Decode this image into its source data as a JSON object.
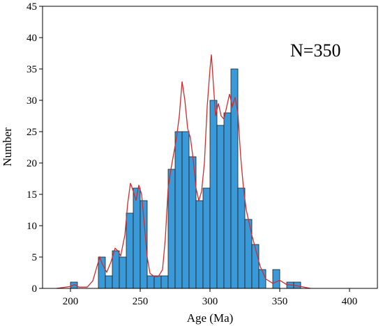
{
  "chart_data": {
    "type": "bar",
    "title": "",
    "xlabel": "Age (Ma)",
    "ylabel": "Number",
    "annotation": "N=350",
    "xlim": [
      180,
      420
    ],
    "ylim": [
      0,
      45
    ],
    "xticks": [
      200,
      250,
      300,
      350,
      400
    ],
    "yticks": [
      0,
      5,
      10,
      15,
      20,
      25,
      30,
      35,
      40,
      45
    ],
    "bin_width": 5,
    "bar_color": "#3a9ad9",
    "curve_color": "#d42a2a",
    "bins": [
      {
        "start": 200,
        "count": 1
      },
      {
        "start": 220,
        "count": 5
      },
      {
        "start": 225,
        "count": 2
      },
      {
        "start": 230,
        "count": 6
      },
      {
        "start": 235,
        "count": 5
      },
      {
        "start": 240,
        "count": 12
      },
      {
        "start": 245,
        "count": 16
      },
      {
        "start": 250,
        "count": 14
      },
      {
        "start": 255,
        "count": 2
      },
      {
        "start": 260,
        "count": 2
      },
      {
        "start": 265,
        "count": 2
      },
      {
        "start": 270,
        "count": 19
      },
      {
        "start": 275,
        "count": 25
      },
      {
        "start": 280,
        "count": 25
      },
      {
        "start": 285,
        "count": 21
      },
      {
        "start": 290,
        "count": 14
      },
      {
        "start": 295,
        "count": 16
      },
      {
        "start": 300,
        "count": 30
      },
      {
        "start": 305,
        "count": 26
      },
      {
        "start": 310,
        "count": 28
      },
      {
        "start": 315,
        "count": 35
      },
      {
        "start": 320,
        "count": 16
      },
      {
        "start": 325,
        "count": 11
      },
      {
        "start": 330,
        "count": 7
      },
      {
        "start": 335,
        "count": 3
      },
      {
        "start": 345,
        "count": 3
      },
      {
        "start": 355,
        "count": 1
      },
      {
        "start": 360,
        "count": 1
      }
    ],
    "density_curve": [
      [
        190,
        0
      ],
      [
        200,
        0.3
      ],
      [
        203,
        0.6
      ],
      [
        206,
        0.2
      ],
      [
        212,
        0.2
      ],
      [
        216,
        1.2
      ],
      [
        219,
        3.5
      ],
      [
        221,
        5.0
      ],
      [
        223,
        3.8
      ],
      [
        226,
        2.6
      ],
      [
        229,
        4.2
      ],
      [
        232,
        6.4
      ],
      [
        234,
        6.0
      ],
      [
        236,
        5.2
      ],
      [
        239,
        8.5
      ],
      [
        241,
        13.5
      ],
      [
        243,
        16.8
      ],
      [
        245,
        15.5
      ],
      [
        247,
        14.0
      ],
      [
        249,
        16.5
      ],
      [
        251,
        15.0
      ],
      [
        253,
        10.0
      ],
      [
        255,
        5.0
      ],
      [
        257,
        2.4
      ],
      [
        260,
        1.9
      ],
      [
        263,
        1.9
      ],
      [
        266,
        3.0
      ],
      [
        268,
        8.0
      ],
      [
        270,
        16.0
      ],
      [
        272,
        19.0
      ],
      [
        274,
        21.5
      ],
      [
        276,
        24.0
      ],
      [
        278,
        27.5
      ],
      [
        280,
        33.0
      ],
      [
        282,
        30.0
      ],
      [
        284,
        25.5
      ],
      [
        286,
        24.0
      ],
      [
        288,
        20.5
      ],
      [
        290,
        16.0
      ],
      [
        292,
        14.0
      ],
      [
        294,
        15.5
      ],
      [
        296,
        20.0
      ],
      [
        298,
        29.0
      ],
      [
        300,
        35.0
      ],
      [
        301,
        37.3
      ],
      [
        302,
        34.0
      ],
      [
        304,
        27.5
      ],
      [
        306,
        29.5
      ],
      [
        308,
        27.5
      ],
      [
        310,
        27.0
      ],
      [
        312,
        29.0
      ],
      [
        314,
        31.0
      ],
      [
        316,
        29.0
      ],
      [
        318,
        30.5
      ],
      [
        320,
        28.0
      ],
      [
        322,
        21.0
      ],
      [
        324,
        16.0
      ],
      [
        326,
        12.5
      ],
      [
        328,
        10.5
      ],
      [
        330,
        8.5
      ],
      [
        333,
        6.0
      ],
      [
        336,
        3.5
      ],
      [
        340,
        1.5
      ],
      [
        345,
        0.8
      ],
      [
        350,
        1.3
      ],
      [
        355,
        0.6
      ],
      [
        360,
        0.5
      ],
      [
        365,
        0.3
      ],
      [
        372,
        0
      ]
    ]
  }
}
